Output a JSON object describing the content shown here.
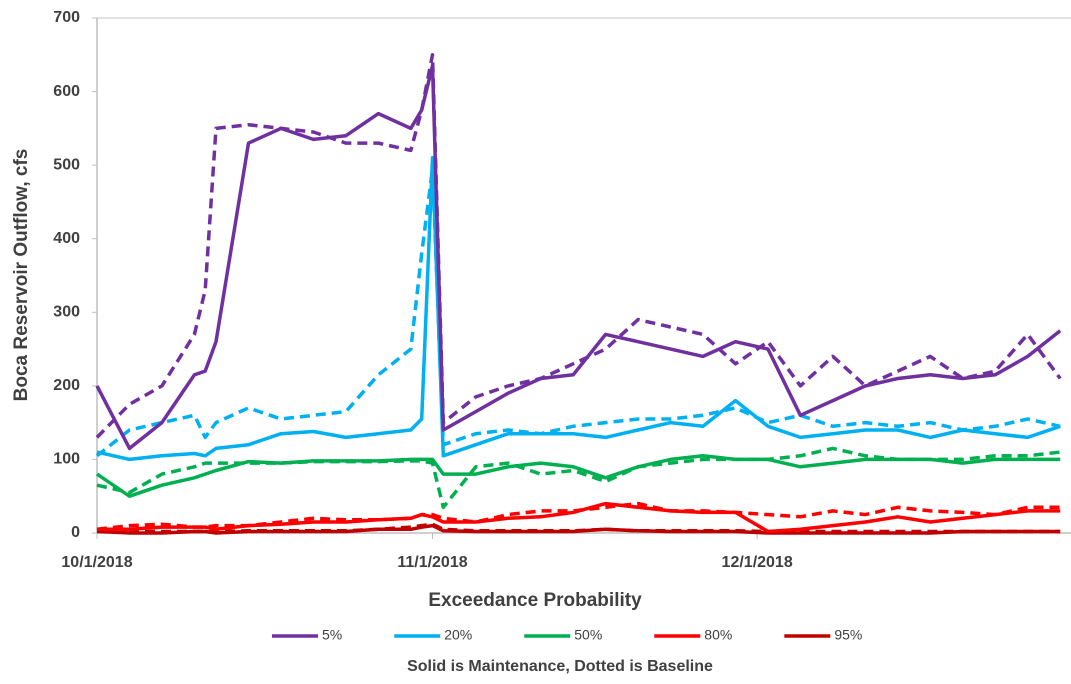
{
  "chart_data": {
    "type": "line",
    "ylabel": "Boca Reservoir Outflow, cfs",
    "xlabel": "Exceedance Probability",
    "note": "Solid is Maintenance, Dotted is Baseline",
    "x": [
      "10/1/2018",
      "10/4/2018",
      "10/7/2018",
      "10/10/2018",
      "10/11/2018",
      "10/12/2018",
      "10/15/2018",
      "10/18/2018",
      "10/21/2018",
      "10/24/2018",
      "10/27/2018",
      "10/30/2018",
      "10/31/2018",
      "11/1/2018",
      "11/2/2018",
      "11/5/2018",
      "11/8/2018",
      "11/11/2018",
      "11/14/2018",
      "11/17/2018",
      "11/20/2018",
      "11/23/2018",
      "11/26/2018",
      "11/29/2018",
      "12/2/2018",
      "12/5/2018",
      "12/8/2018",
      "12/11/2018",
      "12/14/2018",
      "12/17/2018",
      "12/20/2018",
      "12/23/2018",
      "12/26/2018",
      "12/29/2018"
    ],
    "xlim": [
      "10/1/2018",
      "12/30/2018"
    ],
    "xticks": [
      "10/1/2018",
      "11/1/2018",
      "12/1/2018"
    ],
    "ylim": [
      0,
      700
    ],
    "yticks": [
      0,
      100,
      200,
      300,
      400,
      500,
      600,
      700
    ],
    "grid": false,
    "series": [
      {
        "name": "5%",
        "color": "#7030a0",
        "values": [
          200,
          115,
          150,
          215,
          220,
          260,
          530,
          550,
          535,
          540,
          570,
          550,
          575,
          635,
          140,
          165,
          190,
          210,
          215,
          270,
          260,
          250,
          240,
          260,
          250,
          160,
          180,
          200,
          210,
          215,
          210,
          215,
          240,
          275
        ],
        "baseline_values": [
          130,
          175,
          200,
          270,
          330,
          550,
          555,
          550,
          545,
          530,
          530,
          520,
          575,
          650,
          150,
          185,
          200,
          210,
          230,
          250,
          290,
          280,
          270,
          230,
          260,
          200,
          240,
          200,
          220,
          240,
          210,
          220,
          270,
          210
        ]
      },
      {
        "name": "20%",
        "color": "#00b0f0",
        "values": [
          110,
          100,
          105,
          108,
          105,
          115,
          120,
          135,
          138,
          130,
          135,
          140,
          155,
          510,
          105,
          120,
          135,
          135,
          135,
          130,
          140,
          150,
          145,
          180,
          145,
          130,
          135,
          140,
          140,
          130,
          140,
          135,
          130,
          145
        ],
        "baseline_values": [
          105,
          140,
          150,
          160,
          130,
          150,
          170,
          155,
          160,
          165,
          215,
          250,
          380,
          495,
          120,
          135,
          140,
          135,
          145,
          150,
          155,
          155,
          160,
          170,
          150,
          160,
          145,
          150,
          145,
          150,
          140,
          145,
          155,
          145
        ]
      },
      {
        "name": "50%",
        "color": "#00b050",
        "values": [
          80,
          50,
          65,
          75,
          80,
          85,
          97,
          95,
          98,
          98,
          98,
          100,
          100,
          100,
          80,
          80,
          90,
          95,
          90,
          75,
          90,
          100,
          105,
          100,
          100,
          90,
          95,
          100,
          100,
          100,
          95,
          100,
          100,
          100
        ],
        "baseline_values": [
          65,
          55,
          80,
          90,
          95,
          95,
          95,
          95,
          97,
          97,
          97,
          98,
          98,
          95,
          35,
          90,
          95,
          80,
          85,
          70,
          90,
          95,
          100,
          100,
          100,
          105,
          115,
          105,
          100,
          100,
          100,
          105,
          105,
          110
        ]
      },
      {
        "name": "80%",
        "color": "#ff0000",
        "values": [
          5,
          5,
          8,
          8,
          8,
          5,
          10,
          12,
          15,
          15,
          18,
          20,
          25,
          22,
          15,
          15,
          20,
          22,
          28,
          40,
          35,
          30,
          28,
          28,
          2,
          5,
          10,
          15,
          22,
          15,
          20,
          25,
          30,
          30
        ],
        "baseline_values": [
          5,
          10,
          12,
          8,
          8,
          10,
          10,
          15,
          20,
          18,
          18,
          20,
          25,
          25,
          20,
          15,
          25,
          30,
          30,
          35,
          40,
          30,
          30,
          28,
          25,
          22,
          30,
          25,
          35,
          30,
          28,
          25,
          35,
          35
        ]
      },
      {
        "name": "95%",
        "color": "#c00000",
        "values": [
          2,
          0,
          0,
          2,
          2,
          0,
          2,
          2,
          2,
          2,
          5,
          5,
          8,
          10,
          3,
          2,
          2,
          2,
          2,
          5,
          3,
          2,
          2,
          2,
          0,
          0,
          0,
          0,
          0,
          0,
          2,
          2,
          2,
          2
        ],
        "baseline_values": [
          3,
          2,
          2,
          2,
          2,
          2,
          3,
          3,
          3,
          3,
          5,
          8,
          10,
          12,
          5,
          3,
          3,
          3,
          3,
          5,
          3,
          3,
          3,
          3,
          2,
          2,
          2,
          2,
          2,
          2,
          2,
          2,
          2,
          2
        ]
      }
    ]
  }
}
